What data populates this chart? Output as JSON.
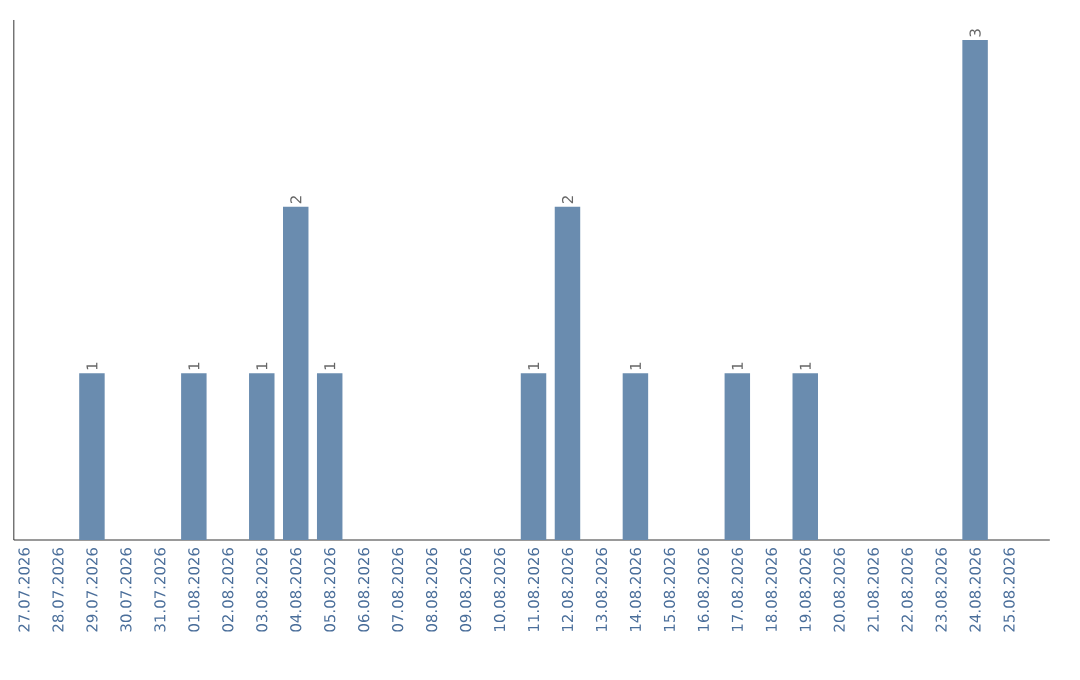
{
  "chart_data": {
    "type": "bar",
    "categories": [
      "27.07.2026",
      "28.07.2026",
      "29.07.2026",
      "30.07.2026",
      "31.07.2026",
      "01.08.2026",
      "02.08.2026",
      "03.08.2026",
      "04.08.2026",
      "05.08.2026",
      "06.08.2026",
      "07.08.2026",
      "08.08.2026",
      "09.08.2026",
      "10.08.2026",
      "11.08.2026",
      "12.08.2026",
      "13.08.2026",
      "14.08.2026",
      "15.08.2026",
      "16.08.2026",
      "17.08.2026",
      "18.08.2026",
      "19.08.2026",
      "20.08.2026",
      "21.08.2026",
      "22.08.2026",
      "23.08.2026",
      "24.08.2026",
      "25.08.2026"
    ],
    "values": [
      0,
      0,
      1,
      0,
      0,
      1,
      0,
      1,
      2,
      1,
      0,
      0,
      0,
      0,
      0,
      1,
      2,
      0,
      1,
      0,
      0,
      1,
      0,
      1,
      0,
      0,
      0,
      0,
      3,
      0
    ],
    "value_labels": [
      null,
      null,
      "1",
      null,
      null,
      "1",
      null,
      "1",
      "2",
      "1",
      null,
      null,
      null,
      null,
      null,
      "1",
      "2",
      null,
      "1",
      null,
      null,
      "1",
      null,
      "1",
      null,
      null,
      null,
      null,
      "3",
      null
    ],
    "color": "#6a8caf",
    "tick_labels": "x"
  }
}
